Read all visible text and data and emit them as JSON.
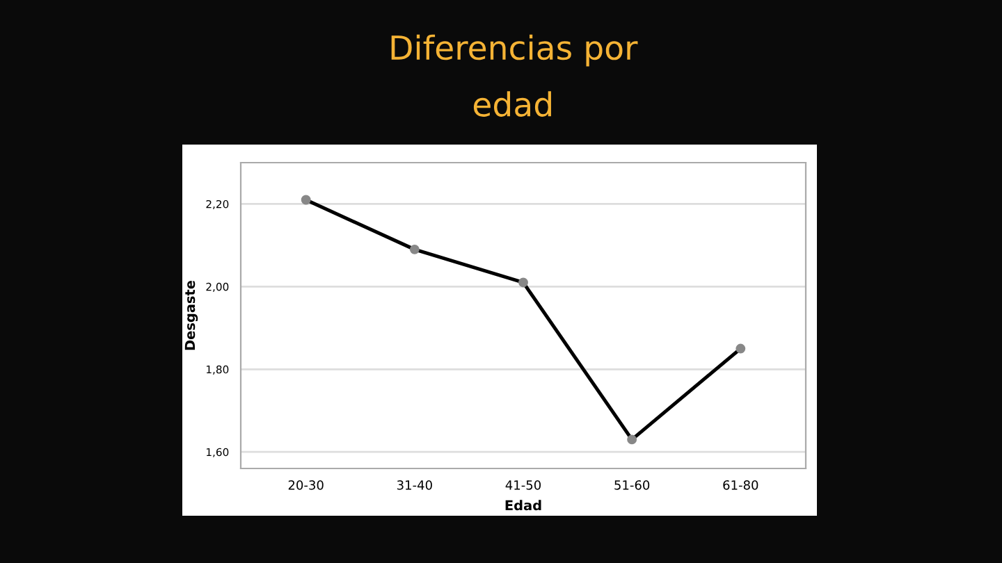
{
  "chart_data": {
    "type": "line",
    "title": "Diferencias por\nedad",
    "xlabel": "Edad",
    "ylabel": "Desgaste",
    "categories": [
      "20-30",
      "31-40",
      "41-50",
      "51-60",
      "61-80"
    ],
    "series": [
      {
        "color": "#000000",
        "values": [
          2.21,
          2.09,
          2.01,
          1.63,
          1.85
        ]
      }
    ],
    "ylim": [
      1.56,
      2.3
    ],
    "yticks": [
      {
        "value": 1.6,
        "label": "1,60"
      },
      {
        "value": 1.8,
        "label": "1,80"
      },
      {
        "value": 2.0,
        "label": "2,00"
      },
      {
        "value": 2.2,
        "label": "2,20"
      }
    ],
    "grid": "y",
    "marker": "circle",
    "line_style": "solid"
  }
}
